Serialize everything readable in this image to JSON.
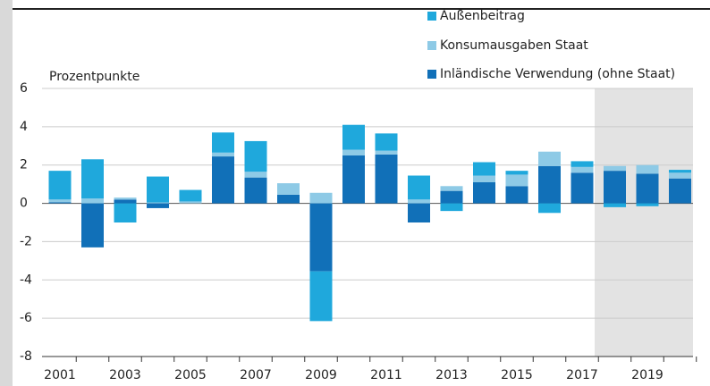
{
  "chart_data": {
    "type": "bar",
    "stacked": true,
    "y_label": "Prozentpunkte",
    "categories": [
      2001,
      null,
      2003,
      null,
      2005,
      null,
      2007,
      null,
      2009,
      null,
      2011,
      null,
      2013,
      null,
      2015,
      null,
      2017,
      null,
      2019,
      null
    ],
    "series": [
      {
        "name": "Inländische Verwendung (ohne Staat)",
        "color": "#1170b8",
        "values": [
          0.05,
          -2.3,
          0.2,
          -0.25,
          0,
          2.45,
          1.35,
          0.45,
          -3.55,
          2.5,
          2.55,
          -1.0,
          0.65,
          1.1,
          0.9,
          1.95,
          1.6,
          1.7,
          1.55,
          1.3
        ]
      },
      {
        "name": "Konsumausgaben Staat",
        "color": "#8ecae6",
        "values": [
          0.15,
          0.25,
          0.1,
          0.05,
          0.1,
          0.2,
          0.3,
          0.6,
          0.55,
          0.3,
          0.2,
          0.2,
          0.25,
          0.35,
          0.6,
          0.75,
          0.3,
          0.25,
          0.45,
          0.3
        ]
      },
      {
        "name": "Außenbeitrag",
        "color": "#1fa8dc",
        "values": [
          1.5,
          2.05,
          -1.0,
          1.35,
          0.6,
          1.05,
          1.6,
          0,
          -2.6,
          1.3,
          0.9,
          1.25,
          -0.4,
          0.7,
          0.2,
          -0.5,
          0.3,
          -0.2,
          -0.15,
          0.15
        ]
      }
    ],
    "ylim": [
      -8,
      6
    ],
    "yticks": [
      -8,
      -6,
      -4,
      -2,
      0,
      2,
      4,
      6
    ],
    "grid": true
  }
}
